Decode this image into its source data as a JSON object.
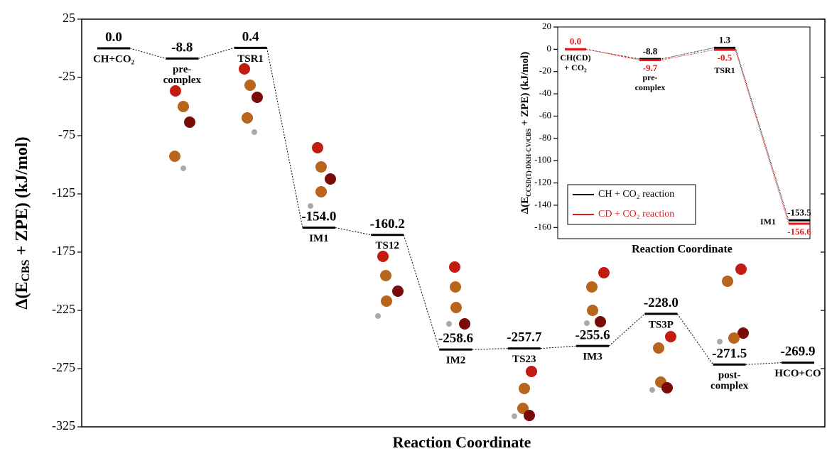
{
  "chart_data": [
    {
      "type": "energy_diagram",
      "ylabel": [
        "Δ(E",
        "CBS",
        " + ZPE) (kJ/mol)"
      ],
      "xlabel": "Reaction Coordinate",
      "categories": [
        [
          "CH+CO₂"
        ],
        [
          "pre-",
          "complex"
        ],
        [
          "TSR1"
        ],
        [
          "IM1"
        ],
        [
          "TS12"
        ],
        [
          "IM2"
        ],
        [
          "TS23"
        ],
        [
          "IM3"
        ],
        [
          "TS3P"
        ],
        [
          "post-",
          "complex"
        ],
        [
          "HCO+CO"
        ]
      ],
      "series": [
        {
          "color": "#000000",
          "values": [
            0.0,
            -8.8,
            0.4,
            -154.0,
            -160.2,
            -258.6,
            -257.7,
            -255.6,
            -228.0,
            -271.5,
            -269.9
          ],
          "value_labels": [
            "0.0",
            "-8.8",
            "0.4",
            "-154.0",
            "-160.2",
            "-258.6",
            "-257.7",
            "-255.6",
            "-228.0",
            "-271.5",
            "-269.9"
          ]
        }
      ],
      "ylim": [
        -325,
        25
      ],
      "yticks": [
        25,
        -25,
        -75,
        -125,
        -175,
        -225,
        -275,
        -325
      ]
    },
    {
      "type": "energy_diagram",
      "ylabel": [
        "Δ(E",
        "CCSD(T)-DKH-CV/CBS",
        " + ZPE) (kJ/mol)"
      ],
      "xlabel": "Reaction Coordinate",
      "categories": [
        [
          "CH(CD)",
          "+ CO₂"
        ],
        [
          "pre-",
          "complex"
        ],
        [
          "TSR1"
        ],
        [
          "IM1"
        ]
      ],
      "series": [
        {
          "name": "CH + CO₂ reaction",
          "color": "#000000",
          "values": [
            0.0,
            -8.8,
            1.3,
            -153.5
          ],
          "value_labels": [
            null,
            "-8.8",
            "1.3",
            "-153.5"
          ]
        },
        {
          "name": "CD + CO₂ reaction",
          "color": "#e31a1c",
          "values": [
            0.0,
            -9.7,
            -0.5,
            -156.6
          ],
          "value_labels": [
            "0.0",
            "-9.7",
            "-0.5",
            "-156.6"
          ]
        }
      ],
      "ylim": [
        -170,
        20
      ],
      "yticks": [
        20,
        0,
        -20,
        -40,
        -60,
        -80,
        -100,
        -120,
        -140,
        -160
      ]
    }
  ]
}
